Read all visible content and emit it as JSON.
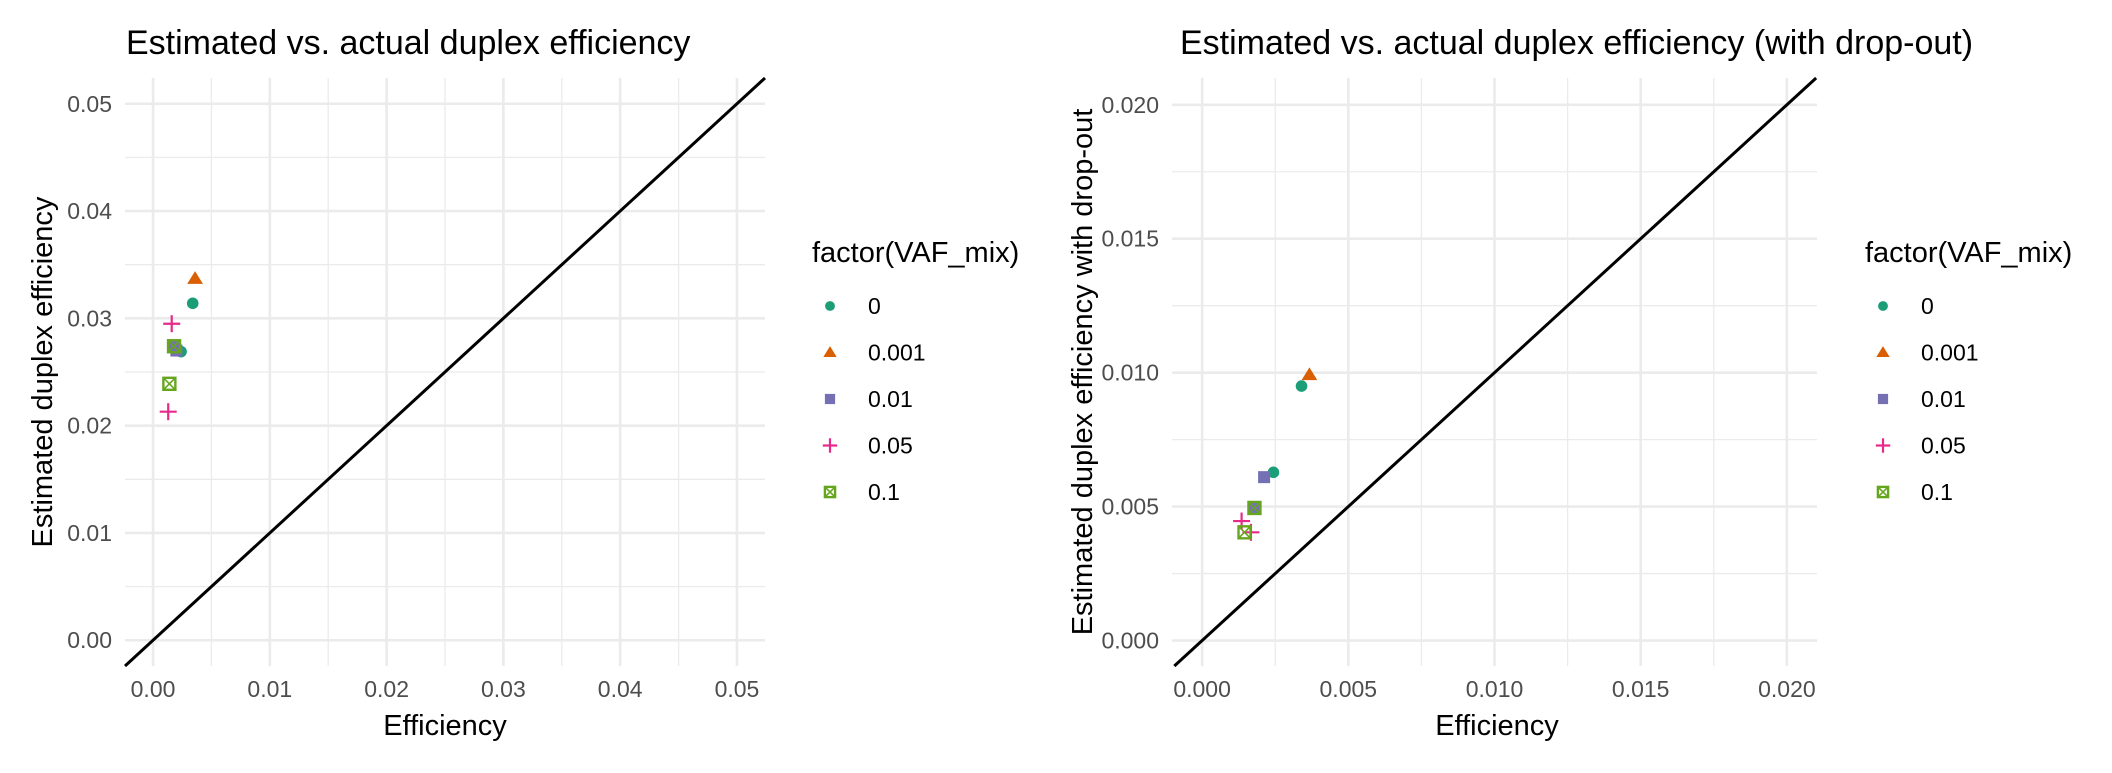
{
  "palette": {
    "0": "#1B9E77",
    "0.001": "#D95F02",
    "0.01": "#7570B3",
    "0.05": "#E7298A",
    "0.1": "#66A61E"
  },
  "chart_data": [
    {
      "type": "scatter",
      "title": "Estimated vs. actual duplex efficiency",
      "xlabel": "Efficiency",
      "ylabel": "Estimated duplex efficiency",
      "xlim": [
        -0.0024,
        0.0524
      ],
      "ylim": [
        -0.0024,
        0.0524
      ],
      "x_ticks": [
        0.0,
        0.01,
        0.02,
        0.03,
        0.04,
        0.05
      ],
      "x_tick_labels": [
        "0.00",
        "0.01",
        "0.02",
        "0.03",
        "0.04",
        "0.05"
      ],
      "y_ticks": [
        0.0,
        0.01,
        0.02,
        0.03,
        0.04,
        0.05
      ],
      "y_tick_labels": [
        "0.00",
        "0.01",
        "0.02",
        "0.03",
        "0.04",
        "0.05"
      ],
      "minor_step": 0.005,
      "grid": true,
      "reference_line": {
        "type": "identity",
        "slope": 1,
        "intercept": 0
      },
      "legend": {
        "title": "factor(VAF_mix)",
        "placement": "right",
        "entries": [
          {
            "label": "0",
            "shape": "circle"
          },
          {
            "label": "0.001",
            "shape": "triangle"
          },
          {
            "label": "0.01",
            "shape": "square"
          },
          {
            "label": "0.05",
            "shape": "plus"
          },
          {
            "label": "0.1",
            "shape": "square-x"
          }
        ]
      },
      "series": [
        {
          "name": "0",
          "shape": "circle",
          "points": [
            [
              0.0034,
              0.0314
            ],
            [
              0.0024,
              0.0269
            ]
          ]
        },
        {
          "name": "0.001",
          "shape": "triangle",
          "points": [
            [
              0.0036,
              0.0337
            ]
          ]
        },
        {
          "name": "0.01",
          "shape": "square",
          "points": [
            [
              0.0018,
              0.0274
            ],
            [
              0.002,
              0.027
            ]
          ]
        },
        {
          "name": "0.05",
          "shape": "plus",
          "points": [
            [
              0.0016,
              0.0295
            ],
            [
              0.0013,
              0.0213
            ]
          ]
        },
        {
          "name": "0.1",
          "shape": "square-x",
          "points": [
            [
              0.0018,
              0.0274
            ],
            [
              0.0014,
              0.0239
            ]
          ]
        }
      ]
    },
    {
      "type": "scatter",
      "title": "Estimated vs. actual duplex efficiency (with drop-out)",
      "xlabel": "Efficiency",
      "ylabel": "Estimated duplex efficiency with drop-out",
      "xlim": [
        -0.00103,
        0.02103
      ],
      "ylim": [
        -0.00095,
        0.021
      ],
      "x_ticks": [
        0.0,
        0.005,
        0.01,
        0.015,
        0.02
      ],
      "x_tick_labels": [
        "0.000",
        "0.005",
        "0.010",
        "0.015",
        "0.020"
      ],
      "y_ticks": [
        0.0,
        0.005,
        0.01,
        0.015,
        0.02
      ],
      "y_tick_labels": [
        "0.000",
        "0.005",
        "0.010",
        "0.015",
        "0.020"
      ],
      "minor_step": 0.0025,
      "grid": true,
      "reference_line": {
        "type": "identity",
        "slope": 1,
        "intercept": 0
      },
      "legend": {
        "title": "factor(VAF_mix)",
        "placement": "right",
        "entries": [
          {
            "label": "0",
            "shape": "circle"
          },
          {
            "label": "0.001",
            "shape": "triangle"
          },
          {
            "label": "0.01",
            "shape": "square"
          },
          {
            "label": "0.05",
            "shape": "plus"
          },
          {
            "label": "0.1",
            "shape": "square-x"
          }
        ]
      },
      "series": [
        {
          "name": "0",
          "shape": "circle",
          "points": [
            [
              0.0034,
              0.0095
            ],
            [
              0.00244,
              0.00628
            ]
          ]
        },
        {
          "name": "0.001",
          "shape": "triangle",
          "points": [
            [
              0.00367,
              0.00992
            ]
          ]
        },
        {
          "name": "0.01",
          "shape": "square",
          "points": [
            [
              0.00212,
              0.0061
            ],
            [
              0.00179,
              0.00495
            ]
          ]
        },
        {
          "name": "0.05",
          "shape": "plus",
          "points": [
            [
              0.00135,
              0.00446
            ],
            [
              0.00167,
              0.00404
            ]
          ]
        },
        {
          "name": "0.1",
          "shape": "square-x",
          "points": [
            [
              0.00179,
              0.00495
            ],
            [
              0.00145,
              0.00404
            ]
          ]
        }
      ]
    }
  ]
}
